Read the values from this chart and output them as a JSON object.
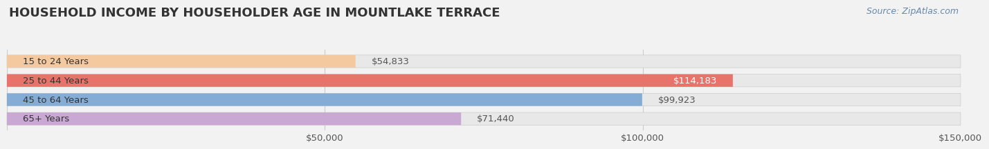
{
  "title": "HOUSEHOLD INCOME BY HOUSEHOLDER AGE IN MOUNTLAKE TERRACE",
  "source": "Source: ZipAtlas.com",
  "categories": [
    "15 to 24 Years",
    "25 to 44 Years",
    "45 to 64 Years",
    "65+ Years"
  ],
  "values": [
    54833,
    114183,
    99923,
    71440
  ],
  "bar_colors": [
    "#f5c9a0",
    "#e8736a",
    "#85acd4",
    "#c9a8d4"
  ],
  "bar_label_colors": [
    "#555555",
    "#ffffff",
    "#555555",
    "#555555"
  ],
  "label_inside": [
    false,
    true,
    false,
    false
  ],
  "xlim": [
    0,
    150000
  ],
  "xticks": [
    50000,
    100000,
    150000
  ],
  "background_color": "#f2f2f2",
  "bar_bg_color": "#e8e8e8",
  "title_fontsize": 13,
  "label_fontsize": 9.5,
  "value_fontsize": 9.5,
  "source_fontsize": 9
}
